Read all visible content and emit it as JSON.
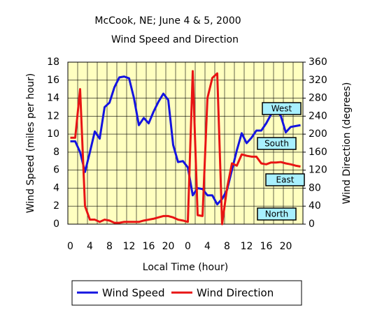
{
  "chart_data": {
    "type": "line",
    "title": "McCook, NE; June 4 & 5, 2000",
    "subtitle": "Wind Speed and Direction",
    "x_label": "Local Time (hour)",
    "y_label": "Wind Speed (miles per hour)",
    "y2_label": "Wind Direction (degrees)",
    "categories": [
      "0",
      null,
      null,
      null,
      "4",
      null,
      null,
      null,
      "8",
      null,
      null,
      null,
      "12",
      null,
      null,
      null,
      "16",
      null,
      null,
      null,
      "20",
      null,
      null,
      null,
      "0",
      null,
      null,
      null,
      "4",
      null,
      null,
      null,
      "8",
      null,
      null,
      null,
      "12",
      null,
      null,
      null,
      "16",
      null,
      null,
      null,
      "20",
      null,
      null,
      null
    ],
    "series": [
      {
        "name": "Wind Speed",
        "color": "#1414e0",
        "axis": "y",
        "values": [
          9.2,
          9.2,
          8,
          5.8,
          8,
          10.3,
          9.5,
          13,
          13.5,
          15.2,
          16.3,
          16.4,
          16.2,
          14,
          11,
          11.8,
          11.2,
          12.5,
          13.6,
          14.5,
          13.8,
          8.8,
          6.9,
          7,
          6.3,
          3.2,
          4,
          3.9,
          3.2,
          3.2,
          2.2,
          2.8,
          3.8,
          6,
          8.2,
          10.1,
          9,
          9.6,
          10.4,
          10.4,
          11.2,
          12.2,
          12.7,
          12,
          10.2,
          10.8,
          10.9,
          11
        ]
      },
      {
        "name": "Wind Direction",
        "color": "#e81414",
        "axis": "y2",
        "values": [
          192,
          192,
          300,
          40,
          10,
          10,
          5,
          10,
          8,
          3,
          3,
          5,
          5,
          5,
          5,
          8,
          10,
          12,
          15,
          18,
          18,
          15,
          10,
          8,
          5,
          340,
          20,
          18,
          280,
          325,
          335,
          0,
          80,
          135,
          130,
          155,
          152,
          150,
          150,
          135,
          133,
          137,
          137,
          138,
          135,
          133,
          130,
          128
        ]
      }
    ],
    "ylim": [
      0,
      18
    ],
    "yticks": [
      0,
      2,
      4,
      6,
      8,
      10,
      12,
      14,
      16,
      18
    ],
    "y2lim": [
      0,
      360
    ],
    "y2ticks": [
      0,
      40,
      80,
      120,
      160,
      200,
      240,
      280,
      320,
      360
    ],
    "grid": true,
    "legend": "bottom",
    "annotations": [
      "West",
      "South",
      "East",
      "North"
    ]
  }
}
